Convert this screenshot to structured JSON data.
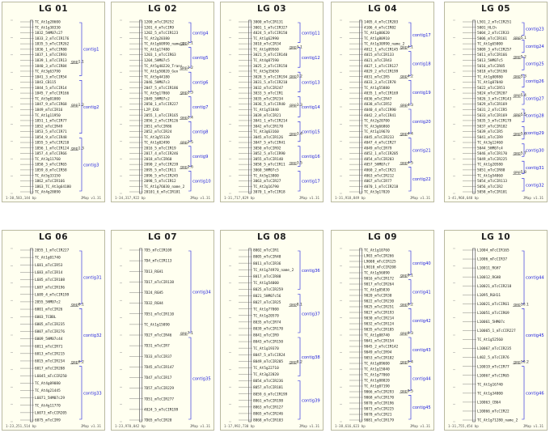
{
  "credit": "JMap v1.31",
  "colors": {
    "contig": "#1b1bdc",
    "gap": "#333333",
    "marker": "#222222",
    "panel_bg": "#fffff0",
    "border": "#b9b9a0"
  },
  "panels": [
    {
      "title": "LG 01",
      "footer": "1-30,583,144 bp",
      "markers": [
        "TC_At1g28600",
        "TC_At1g38330",
        "1832_5HM07c27",
        "1833_2_mTcCIR176",
        "1835_5_mTcCIR262",
        "1836_1_mTcCIR80",
        "1837_1_mTcCIR93",
        "1839_1_mTcCIR13",
        "1840_3_mTcCIR84",
        "TC_At3g63790",
        "1841_3_mTcCIR54",
        "1843_CB115",
        "1844_5_mTcCIR14",
        "1845_7_mTcCIR166",
        "TC_At5g01000",
        "1847_9_mTcCIR68",
        "1849_mTcCIR16",
        "TC_At1g11950",
        "1851_1_mTcCIR77",
        "1852_mTcCIR49",
        "1853_5_mTcCIR71",
        "1854_9_mTcCIR48",
        "1855_5_mTcCIR210",
        "1856_1_mTcCIR124",
        "1857_4_mTcCIR66",
        "TC_At3g11760",
        "1858_3_mTcCIR65",
        "1859_8_mTcCIR58",
        "TC_At5g33150",
        "1862_mTcCIR166",
        "1863_TC_At3g64180",
        "TC_At4g28090"
      ],
      "contigs": [
        "contig1",
        "contig2",
        "contig3"
      ],
      "gaps": [
        "gap1.1",
        "gap1.2",
        "gap1.3"
      ]
    },
    {
      "title": "LG 02",
      "footer": "1-34,317,922 bp",
      "markers": [
        "1200_mTcCIR252",
        "1201_4_mTcCIR9",
        "1202_5_mTcCIR123",
        "TC_At2g20380",
        "TC_At1g60990_name_2",
        "TC_At1g17480",
        "1203_1_mTcCIR63",
        "1204_5HM07c5",
        "TC_At5g40220_Trans",
        "TC_At1g50020_Gen",
        "TC_At5g44180",
        "2046_5HM07c3",
        "2047_5_mTcCIR186",
        "TC_At5g17860",
        "2049_5HM07c2",
        "2050_1_mTcCIR227",
        "L2P_EXO",
        "2055_1_mTcCIR165",
        "2056_2_mTcCIR126",
        "2051_mTcCIR86",
        "2052_mTcCIR24",
        "TC_At3g55120",
        "TC_At1g02490",
        "2016_5_mTcCIR19",
        "2017_4_mTcCIR246",
        "2018_mTcCIR60",
        "2090_2_mTcCIR239",
        "2095_5_mTcCIR11",
        "2096_5_mTcCIR245",
        "2098_5_mTcCIR12",
        "TC_At1g76030_name_2",
        "20101_6_mTcCIR181"
      ],
      "contigs": [
        "contig4",
        "contig5",
        "contig6",
        "contig7",
        "contig8",
        "contig9",
        "contig10"
      ],
      "gaps": [
        "gap2.1",
        "gap2.2",
        "gap2.3",
        "gap2.4",
        "gap2.5",
        "gap2.6"
      ]
    },
    {
      "title": "LG 03",
      "footer": "1-31,717,829 bp",
      "markers": [
        "3000_mTcCIR131",
        "3001_1_mTcCIR327",
        "4024_5_mTcCIR150",
        "TC_At1g62990",
        "3010_mTcCIR34",
        "TC_At1g09560",
        "3021_5_mTcCIR140",
        "TC_At4g07590",
        "3025_2_mTcCIR150",
        "TC_At5g35650",
        "3028_5_mTcCIR194",
        "3031_5_mTcCIR210",
        "3032_mTcCIR247",
        "3033_5_mTcCIR1",
        "3035_mTcCIR234",
        "3036_5_mTcCIR40",
        "TC_At1g51840",
        "3039_mTcCIR21",
        "3041_1_mTcCIR214",
        "3042_mTcCIR178",
        "TC_At3g63160",
        "3045_mTcCIR126",
        "3047_5_mTcCIR41",
        "3050_mTcCIR92",
        "3052_5_mTcCIR90",
        "3055_mTcCIR140",
        "3058_5_mTcCIR11",
        "3060_5HM07c5",
        "TC_At5g13800",
        "3063_mTcCIR27",
        "TC_At2g16790",
        "3070_1_mTcCIR18"
      ],
      "contigs": [
        "contig11",
        "contig12",
        "contig13",
        "contig14",
        "contig15",
        "contig16",
        "contig17"
      ],
      "gaps": [
        "gap3.1",
        "gap3.2",
        "gap3.3",
        "gap3.4",
        "gap3.5"
      ]
    },
    {
      "title": "LG 04",
      "footer": "1-31,918,849 bp",
      "markers": [
        "1405_4_mTcCIR203",
        "4106_4_mTcCIR82",
        "TC_At1g00620",
        "TC_At1g80910",
        "TC_At1g30990_name_2",
        "4012_1_mTcCIR145",
        "4015_mTcCIR133",
        "4021_mTcCIR43",
        "4027_1_mTcCIR127",
        "4029_2_mTcCIR199",
        "4031_mTcCIR5",
        "4033_3_mTcCIR78",
        "TC_At1g55880",
        "4035_1_mTcCIR169",
        "4036_mTcCIR47",
        "4038_mTcCIR52",
        "4040_4_mTcCIR90",
        "4042_2_mTcCIR41",
        "TC_At2g20700",
        "TC_At3g66860",
        "TC_At1g19670",
        "4045_mTcCIR233",
        "4047_4_mTcCIR27",
        "4049_mTcCIR79",
        "4052_1_mTcCIR205",
        "4054_mTcCIR203",
        "4057_5HM07c7",
        "4060_2_mTcCIR21",
        "4063_mTcCIR212",
        "4067_mTcCIR77",
        "4070_1_mTcCIR218",
        "TC_At3g17020"
      ],
      "contigs": [
        "contig17",
        "contig18",
        "contig19",
        "contig20",
        "contig21",
        "contig22"
      ],
      "gaps": [
        "gap4.1",
        "gap4.2",
        "gap4.3",
        "gap4.4",
        "gap4.5"
      ]
    },
    {
      "title": "LG 05",
      "footer": "1-41,968,648 bp",
      "markers": [
        "L501_2_mTcCIR251",
        "5001_HLCh",
        "5004_2_mTcCIR33",
        "5006_mTcCIR161",
        "TC_At1g65000",
        "5009_3_mTcCIR257",
        "5011_mTcCIR166",
        "5013_5HM07c5",
        "5016_mTcCIR85",
        "5018_mTcCIR190",
        "TC_At1g80980",
        "TC_At1g07040",
        "5022_mTcCIR51",
        "5024_mTcCIR207",
        "5026_3_mTcCIR143",
        "5029_mTcCIR169",
        "5031_2_mTcCIR5",
        "5033_mTcCIR169",
        "5035_5_mTcCIR179",
        "5037_mTcCIR102",
        "5039_mTcCIR5",
        "5041_mTcCIR9",
        "TC_At3g12460",
        "5044_5HM07c4",
        "5046_mTcCIR170",
        "5049_mTcCIR225",
        "TC_At1g20580",
        "5051_mTcCIR88",
        "TC_At1g54060",
        "5054_mTcCIR113",
        "5056_mTcCIR2",
        "5058_mTcCIR101"
      ],
      "contigs": [
        "contig23",
        "contig24",
        "contig25",
        "contig26",
        "contig27",
        "contig28",
        "contig29",
        "contig30",
        "contig31",
        "contig32"
      ],
      "gaps": [
        "gap5.1",
        "gap5.2",
        "gap5.3",
        "gap5.4",
        "gap5.5",
        "gap5.6",
        "gap5.7",
        "gap5.8"
      ]
    },
    {
      "title": "LG 06",
      "footer": "1-23,251,514 bp",
      "markers": [
        "2055_1_mTcCIR227",
        "TC_At1g01740",
        "L681_mTcCIR53",
        "L683_mTcCIR14",
        "L685_mTcCIR108",
        "L687_mTcCIR196",
        "L689_4_mTcCIR199",
        "2055_5HM07c2",
        "6001_mTcCIR26",
        "6003_TCBBL",
        "6005_mTcCIR235",
        "6007_mTcCIR276",
        "6009_5HM07c44",
        "6011_mTcCIR71",
        "6013_mTcCIR215",
        "6015_mTcCIR234",
        "6017_mTcCIR208",
        "L6045_mTcCIR250",
        "TC_At4g09080",
        "TC_At4g21445",
        "L6071_5HM07c29",
        "TC_At4g11770",
        "L6073_mTcCIR205",
        "6075_mTcCIR9"
      ],
      "contigs": [
        "contig31",
        "contig32",
        "contig33"
      ],
      "gaps": [
        "gap6.1",
        "gap6.2"
      ]
    },
    {
      "title": "LG 07",
      "footer": "1-23,970,042 bp",
      "markers": [
        "7D5_mTcCIR109",
        "7D4_mTcCIR113",
        "7D13_RGH1",
        "7D17_mTcCIR138",
        "7D24_RGH5",
        "7D32_RGH4",
        "7D51_mTcCIR110",
        "TC_At1g15090",
        "7D27_mTcCIR46",
        "7D31_mTcCIR7",
        "7D33_mTcCIR37",
        "7D45_mTcCIR147",
        "7D47_mTcCIR17",
        "7D57_mTcCIR229",
        "7D51_mTcCIR277",
        "4024_5_mTcCIR199",
        "7D65_mTcCIR20"
      ],
      "contigs": [
        "contig34",
        "contig35"
      ],
      "gaps": [
        "gap7.1"
      ]
    },
    {
      "title": "LG 08",
      "footer": "1-17,992,730 bp",
      "markers": [
        "8002_mTcCIR1",
        "8005_mTcCIR48",
        "8011_mTcCIR36",
        "TC_At1g74970_name_2",
        "8017_mTcCIR88",
        "TC_At1g54000",
        "8025_mTcCIR259",
        "8021_5HM07c56",
        "8027_mTcCIR25",
        "TC_At1g77000",
        "TC_At1g20570",
        "8035_mTcCIR74",
        "8039_mTcCIR170",
        "8041_mTcCIR9",
        "8043_mTcCIR150",
        "TC_At1g19370",
        "8047_5_mTcCIR24",
        "8049_mTcCIR205",
        "TC_At5g22710",
        "TC_At3g22020",
        "8054_mTcCIR236",
        "8057_mTcCIR181",
        "8059_6_mTcCIR199",
        "8061_mTcCIR198",
        "8063_mTcCIR127",
        "8065_mTcCIR246",
        "8068_mTcCIR103"
      ],
      "contigs": [
        "contig36",
        "contig37",
        "contig38",
        "contig39"
      ],
      "gaps": [
        "gap8.1",
        "gap8.2"
      ]
    },
    {
      "title": "LG 09",
      "footer": "1-38,616,623 bp",
      "markers": [
        "TC_At1g10760",
        "L903_mTcCIR266",
        "L9008_mTcCIR125",
        "L9010_mTcCIR208",
        "TC_At1g56090",
        "9016_mTcCIR172",
        "9017_mTcCIR264",
        "TC_At1g05830",
        "9020_mTcCIR30",
        "9022_mTcCIR230",
        "9025_mTcCIR251",
        "9027_mTcCIR193",
        "9030_mTcCIR214",
        "9032_mTcCIR124",
        "9035_mTcCIR185",
        "TC_At1g08740",
        "9041_mTcCIR154",
        "9045_2_mTcCIR142",
        "9049_mTcCIR94",
        "9053_mTcCIR182",
        "TC_At1g09600",
        "TC_At1g15040",
        "TC_At1g77060",
        "TC_At1g08020",
        "TC_At1g07190",
        "9066_mTcCIR293",
        "9068_mTcCIR170",
        "9070_mTcCIR196",
        "9073_mTcCIR225",
        "9078_mTcCIR21",
        "9081_mTcCIR179"
      ],
      "contigs": [
        "contig40",
        "contig41",
        "contig42",
        "contig43",
        "contig44",
        "contig45"
      ],
      "gaps": [
        "gap9.1",
        "gap9.2",
        "gap9.3",
        "gap9.4",
        "gap9.5"
      ]
    },
    {
      "title": "LG 10",
      "footer": "1-31,755,454 bp",
      "markers": [
        "L1004_mTcCIR165",
        "L1006_mTcCIR37",
        "L10011_RGH7",
        "L10012_RGH8",
        "L10021_mTcCIR218",
        "L1095_RGH11",
        "L10021_mTcCIR61",
        "L10051_mTcCIR69",
        "L10061_5HM07c",
        "L10065_1_mTcCIR227",
        "TC_At1g52560",
        "L10067_mTcCIR235",
        "L402_5_mTcCIR76",
        "L10019_mTcCIR77",
        "L10067_mTcCIR65",
        "TC_At1g16740",
        "TC_At1g34000",
        "L10063_CB64",
        "L10066_mTcCIR22",
        "TC_At1g71280_name_2"
      ],
      "contigs": [
        "contig44",
        "contig45",
        "contig46"
      ],
      "gaps": [
        "gap10.1",
        "gap10.2"
      ]
    }
  ]
}
